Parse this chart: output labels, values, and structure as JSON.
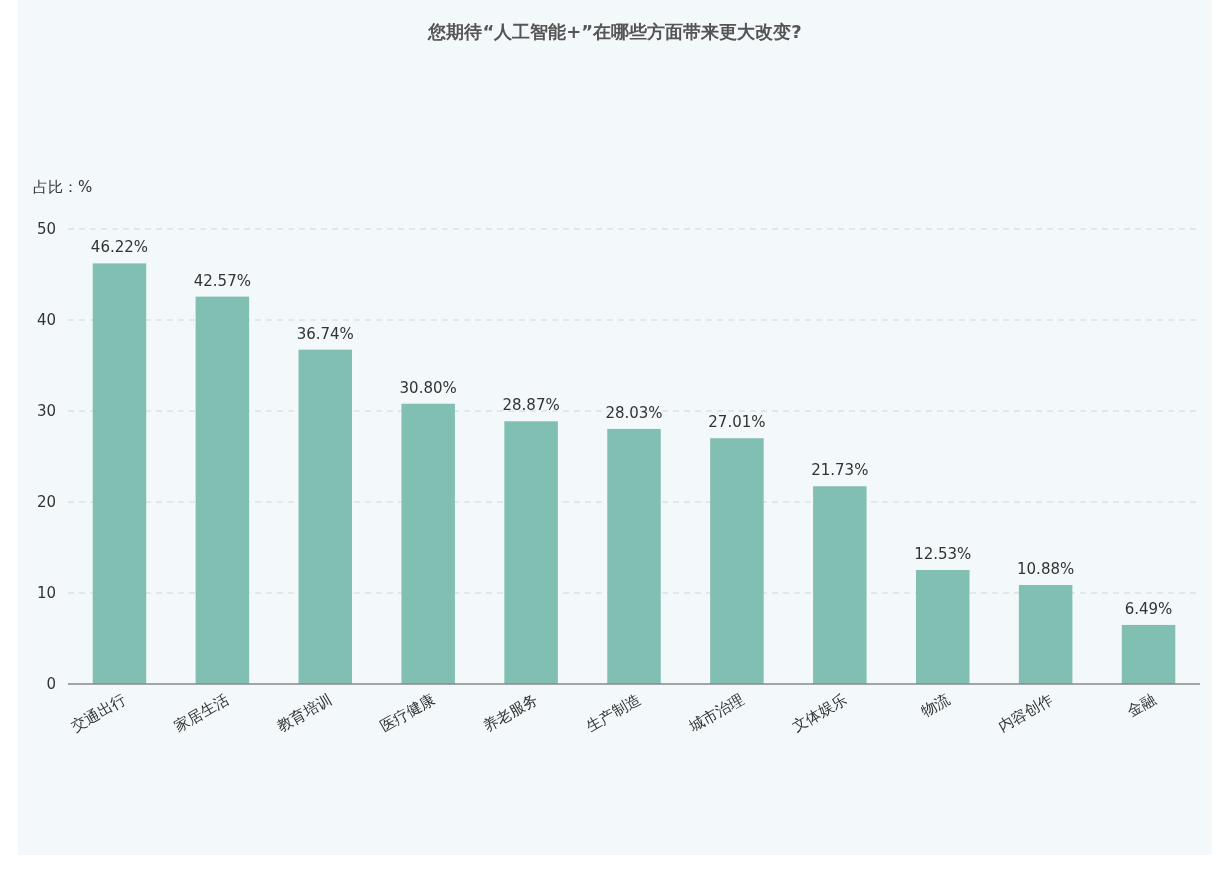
{
  "chart_data": {
    "type": "bar",
    "title": "您期待“人工智能+”在哪些方面带来更大改变?",
    "ylabel": "占比：%",
    "categories": [
      "交通出行",
      "家居生活",
      "教育培训",
      "医疗健康",
      "养老服务",
      "生产制造",
      "城市治理",
      "文体娱乐",
      "物流",
      "内容创作",
      "金融"
    ],
    "values": [
      46.22,
      42.57,
      36.74,
      30.8,
      28.87,
      28.03,
      27.01,
      21.73,
      12.53,
      10.88,
      6.49
    ],
    "value_labels": [
      "46.22%",
      "42.57%",
      "36.74%",
      "30.80%",
      "28.87%",
      "28.03%",
      "27.01%",
      "21.73%",
      "12.53%",
      "10.88%",
      "6.49%"
    ],
    "color": "#82bfb3",
    "ylim": [
      0,
      50
    ],
    "yticks": [
      0,
      10,
      20,
      30,
      40,
      50
    ],
    "grid": "y"
  }
}
